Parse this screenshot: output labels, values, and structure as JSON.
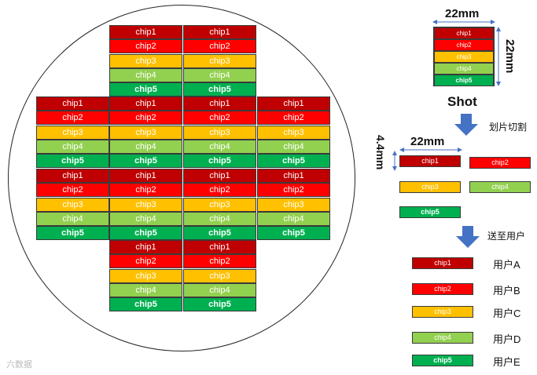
{
  "chip_labels": [
    "chip1",
    "chip2",
    "chip3",
    "chip4",
    "chip5"
  ],
  "colors": {
    "chip1": "#c00000",
    "chip2": "#ff0000",
    "chip3": "#ffc000",
    "chip4": "#92d050",
    "chip5": "#00b050"
  },
  "shot": {
    "width_label": "22mm",
    "height_label": "22mm",
    "title": "Shot"
  },
  "step1": {
    "label": "划片切割",
    "width_label": "22mm",
    "height_label": "4.4mm"
  },
  "step2": {
    "label": "送至用户"
  },
  "users": [
    "用户A",
    "用户B",
    "用户C",
    "用户D",
    "用户E"
  ],
  "watermark": "六数据"
}
